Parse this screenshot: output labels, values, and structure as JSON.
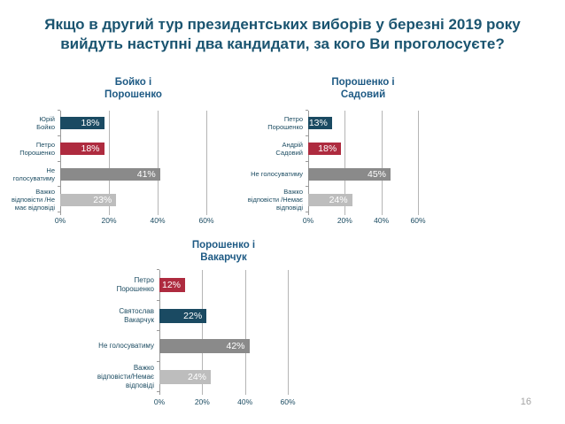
{
  "page": {
    "title_lines": [
      "Якщо в другий тур президентських виборів у березні 2019 року",
      "вийдуть наступні два кандидати, за кого Ви проголосуєте?"
    ],
    "page_number": "16"
  },
  "colors": {
    "navy": "#1a4a62",
    "red": "#ae2b3f",
    "gray": "#8a8a8a",
    "light_gray": "#bdbdbd",
    "title": "#1a5470",
    "chart_title": "#1e5a84",
    "label_text": "#1c4c62",
    "gridline": "#b5b5b5",
    "axis": "#9a9a9a",
    "page_number": "#a3a3a3"
  },
  "chart_data": [
    {
      "type": "bar",
      "orientation": "horizontal",
      "title": "Бойко і Порошенко",
      "title_lines": [
        "Бойко і",
        "Порошенко"
      ],
      "xlim": [
        0,
        60
      ],
      "ticks": [
        "0%",
        "20%",
        "40%",
        "60%"
      ],
      "grid": true,
      "rows": [
        {
          "category": "Юрій Бойко",
          "label_lines": [
            "Юрій",
            "Бойко"
          ],
          "value": 18,
          "display": "18%",
          "color": "navy"
        },
        {
          "category": "Петро Порошенко",
          "label_lines": [
            "Петро",
            "Порошенко"
          ],
          "value": 18,
          "display": "18%",
          "color": "red"
        },
        {
          "category": "Не голосуватиму",
          "label_lines": [
            "Не",
            "голосуватиму"
          ],
          "value": 41,
          "display": "41%",
          "color": "gray"
        },
        {
          "category": "Важко відповісти /Не має відповіді",
          "label_lines": [
            "Важко",
            "відповісти /Не",
            "має відповіді"
          ],
          "value": 23,
          "display": "23%",
          "color": "light_gray"
        }
      ]
    },
    {
      "type": "bar",
      "orientation": "horizontal",
      "title": "Порошенко і Садовий",
      "title_lines": [
        "Порошенко і",
        "Садовий"
      ],
      "xlim": [
        0,
        60
      ],
      "ticks": [
        "0%",
        "20%",
        "40%",
        "60%"
      ],
      "grid": true,
      "rows": [
        {
          "category": "Петро Порошенко",
          "label_lines": [
            "Петро",
            "Порошенко"
          ],
          "value": 13,
          "display": "13%",
          "color": "navy"
        },
        {
          "category": "Андрій Садовий",
          "label_lines": [
            "Андрій",
            "Садовий"
          ],
          "value": 18,
          "display": "18%",
          "color": "red"
        },
        {
          "category": "Не голосуватиму",
          "label_lines": [
            "Не голосуватиму"
          ],
          "value": 45,
          "display": "45%",
          "color": "gray"
        },
        {
          "category": "Важко відповісти /Немає відповіді",
          "label_lines": [
            "Важко",
            "відповісти /Немає",
            "відповіді"
          ],
          "value": 24,
          "display": "24%",
          "color": "light_gray"
        }
      ]
    },
    {
      "type": "bar",
      "orientation": "horizontal",
      "title": "Порошенко і Вакарчук",
      "title_lines": [
        "Порошенко і",
        "Вакарчук"
      ],
      "xlim": [
        0,
        60
      ],
      "ticks": [
        "0%",
        "20%",
        "40%",
        "60%"
      ],
      "grid": true,
      "rows": [
        {
          "category": "Петро Порошенко",
          "label_lines": [
            "Петро",
            "Порошенко"
          ],
          "value": 12,
          "display": "12%",
          "color": "red"
        },
        {
          "category": "Святослав Вакарчук",
          "label_lines": [
            "Святослав",
            "Вакарчук"
          ],
          "value": 22,
          "display": "22%",
          "color": "navy"
        },
        {
          "category": "Не голосуватиму",
          "label_lines": [
            "Не голосуватиму"
          ],
          "value": 42,
          "display": "42%",
          "color": "gray"
        },
        {
          "category": "Важко відповісти/Немає відповіді",
          "label_lines": [
            "Важко",
            "відповісти/Немає",
            "відповіді"
          ],
          "value": 24,
          "display": "24%",
          "color": "light_gray"
        }
      ]
    }
  ]
}
